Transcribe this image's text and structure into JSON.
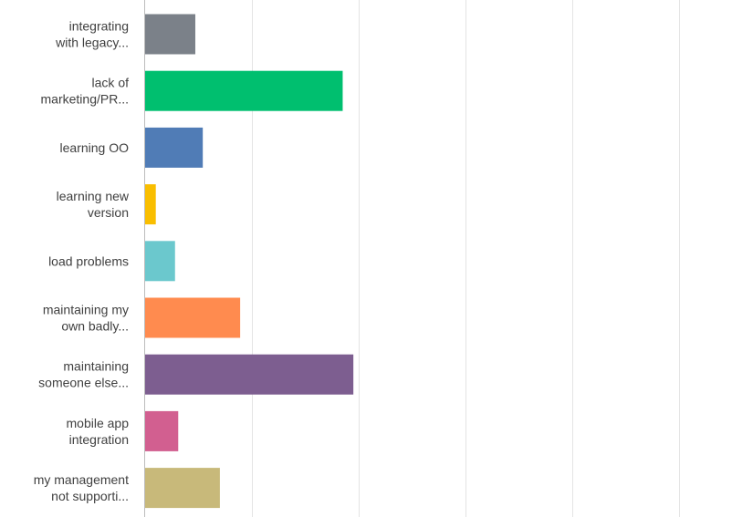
{
  "chart_data": {
    "type": "bar",
    "orientation": "horizontal",
    "categories": [
      [
        "integrating",
        "with legacy..."
      ],
      [
        "lack of",
        "marketing/PR..."
      ],
      [
        "learning OO"
      ],
      [
        "learning new",
        "version"
      ],
      [
        "load problems"
      ],
      [
        "maintaining my",
        "own badly..."
      ],
      [
        "maintaining",
        "someone else..."
      ],
      [
        "mobile app",
        "integration"
      ],
      [
        "my management",
        "not supporti..."
      ]
    ],
    "values": [
      4.7,
      18.5,
      5.4,
      1.0,
      2.8,
      8.9,
      19.5,
      3.1,
      7.0
    ],
    "colors": [
      "#7b8189",
      "#00bf6f",
      "#507cb6",
      "#f9be00",
      "#6bc8cd",
      "#ff8b4f",
      "#7d5e90",
      "#d25f90",
      "#c8b97a"
    ],
    "xlim": [
      0,
      55
    ],
    "x_gridlines": [
      0,
      10,
      20,
      30,
      40,
      50
    ],
    "grid": true,
    "title": "",
    "xlabel": "",
    "ylabel": ""
  }
}
